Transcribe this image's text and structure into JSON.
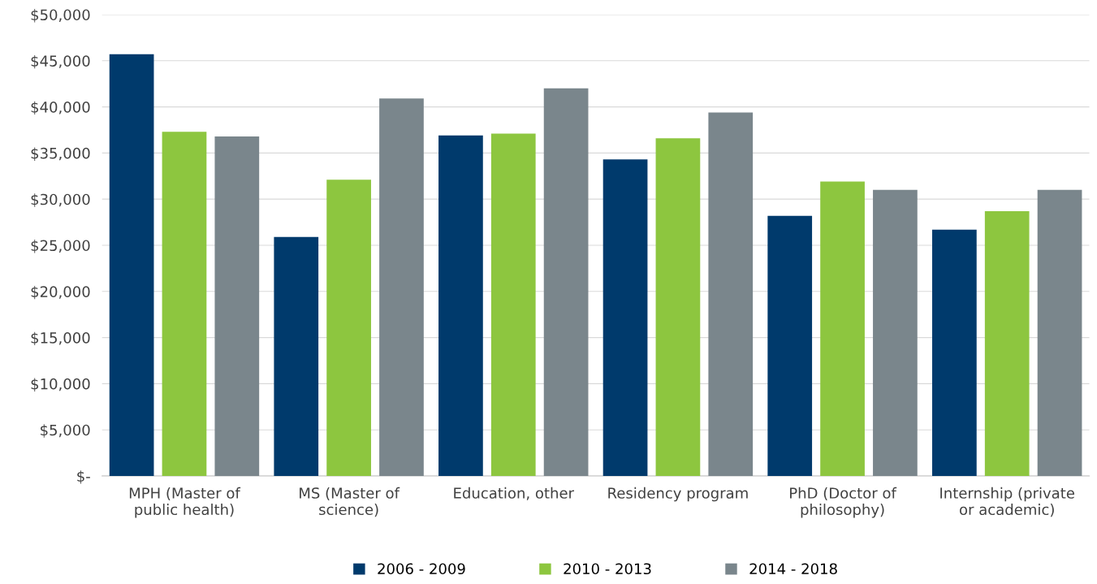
{
  "chart_data": {
    "type": "bar",
    "categories": [
      "MPH (Master of\npublic health)",
      "MS (Master of\nscience)",
      "Education, other",
      "Residency program",
      "PhD (Doctor of\nphilosophy)",
      "Internship (private\nor academic)"
    ],
    "series": [
      {
        "name": "2006 - 2009",
        "color": "#003a6c",
        "values": [
          45700,
          25900,
          36900,
          34300,
          28200,
          26700
        ]
      },
      {
        "name": "2010 - 2013",
        "color": "#8dc63f",
        "values": [
          37300,
          32100,
          37100,
          36600,
          31900,
          28700
        ]
      },
      {
        "name": "2014 - 2018",
        "color": "#7a868c",
        "values": [
          36800,
          40900,
          42000,
          39400,
          31000,
          31000
        ]
      }
    ],
    "ylim": [
      0,
      50000
    ],
    "yticks": [
      {
        "value": 0,
        "label": "$-"
      },
      {
        "value": 5000,
        "label": "$5,000"
      },
      {
        "value": 10000,
        "label": "$10,000"
      },
      {
        "value": 15000,
        "label": "$15,000"
      },
      {
        "value": 20000,
        "label": "$20,000"
      },
      {
        "value": 25000,
        "label": "$25,000"
      },
      {
        "value": 30000,
        "label": "$30,000"
      },
      {
        "value": 35000,
        "label": "$35,000"
      },
      {
        "value": 40000,
        "label": "$40,000"
      },
      {
        "value": 45000,
        "label": "$45,000"
      },
      {
        "value": 50000,
        "label": "$50,000"
      }
    ],
    "grid": "y",
    "legend": "bottom"
  }
}
